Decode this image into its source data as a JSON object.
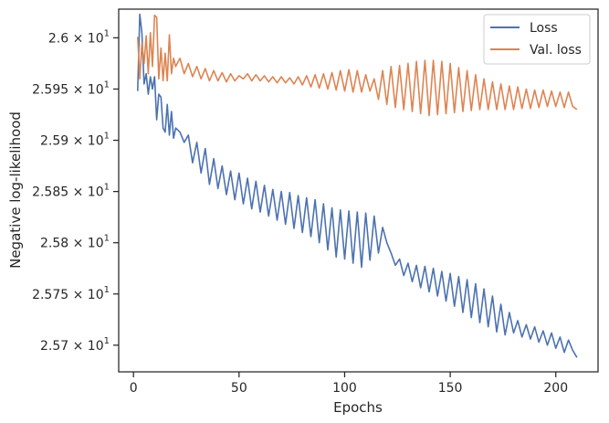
{
  "chart_data": {
    "type": "line",
    "title": "",
    "xlabel": "Epochs",
    "ylabel": "Negative log-likelihood",
    "xlim": [
      -7,
      220
    ],
    "ylim": [
      25.674,
      26.028
    ],
    "xticks": [
      0,
      50,
      100,
      150,
      200
    ],
    "xtick_labels": [
      "0",
      "50",
      "100",
      "150",
      "200"
    ],
    "yticks": [
      25.7,
      25.75,
      25.8,
      25.85,
      25.9,
      25.95,
      26.0
    ],
    "ytick_labels": [
      {
        "mantissa": "2.57",
        "base": "10",
        "exp": "1"
      },
      {
        "mantissa": "2.575",
        "base": "10",
        "exp": "1"
      },
      {
        "mantissa": "2.58",
        "base": "10",
        "exp": "1"
      },
      {
        "mantissa": "2.585",
        "base": "10",
        "exp": "1"
      },
      {
        "mantissa": "2.59",
        "base": "10",
        "exp": "1"
      },
      {
        "mantissa": "2.595",
        "base": "10",
        "exp": "1"
      },
      {
        "mantissa": "2.6",
        "base": "10",
        "exp": "1"
      }
    ],
    "grid": false,
    "legend_position": "top-right",
    "series": [
      {
        "name": "Loss",
        "color": "#4c72b0",
        "x": [
          2,
          3,
          4,
          5,
          6,
          7,
          8,
          9,
          10,
          11,
          12,
          13,
          14,
          15,
          16,
          17,
          18,
          19,
          20,
          22,
          24,
          26,
          28,
          30,
          32,
          34,
          36,
          38,
          40,
          42,
          44,
          46,
          48,
          50,
          52,
          54,
          56,
          58,
          60,
          62,
          64,
          66,
          68,
          70,
          72,
          74,
          76,
          78,
          80,
          82,
          84,
          86,
          88,
          90,
          92,
          94,
          96,
          98,
          100,
          102,
          104,
          106,
          108,
          110,
          112,
          114,
          116,
          118,
          120,
          122,
          124,
          126,
          128,
          130,
          132,
          134,
          136,
          138,
          140,
          142,
          144,
          146,
          148,
          150,
          152,
          154,
          156,
          158,
          160,
          162,
          164,
          166,
          168,
          170,
          172,
          174,
          176,
          178,
          180,
          182,
          184,
          186,
          188,
          190,
          192,
          194,
          196,
          198,
          200,
          202,
          204,
          206,
          208,
          210
        ],
        "values": [
          25.948,
          26.023,
          26.005,
          25.955,
          25.965,
          25.945,
          25.962,
          25.95,
          25.962,
          25.92,
          25.945,
          25.942,
          25.912,
          25.908,
          25.935,
          25.905,
          25.928,
          25.902,
          25.912,
          25.908,
          25.898,
          25.905,
          25.878,
          25.898,
          25.868,
          25.892,
          25.857,
          25.882,
          25.853,
          25.875,
          25.847,
          25.87,
          25.842,
          25.868,
          25.838,
          25.863,
          25.833,
          25.86,
          25.83,
          25.856,
          25.826,
          25.852,
          25.822,
          25.85,
          25.818,
          25.849,
          25.814,
          25.846,
          25.81,
          25.844,
          25.806,
          25.842,
          25.8,
          25.838,
          25.793,
          25.834,
          25.786,
          25.832,
          25.784,
          25.831,
          25.78,
          25.83,
          25.776,
          25.829,
          25.783,
          25.826,
          25.79,
          25.815,
          25.8,
          25.79,
          25.778,
          25.784,
          25.768,
          25.78,
          25.762,
          25.778,
          25.756,
          25.777,
          25.752,
          25.775,
          25.748,
          25.772,
          25.743,
          25.77,
          25.738,
          25.767,
          25.732,
          25.764,
          25.727,
          25.76,
          25.722,
          25.755,
          25.718,
          25.748,
          25.713,
          25.74,
          25.71,
          25.732,
          25.712,
          25.724,
          25.708,
          25.72,
          25.706,
          25.718,
          25.703,
          25.714,
          25.7,
          25.712,
          25.697,
          25.708,
          25.693,
          25.705,
          25.695,
          25.688
        ]
      },
      {
        "name": "Val. loss",
        "color": "#dd8452",
        "x": [
          2,
          3,
          4,
          5,
          6,
          7,
          8,
          9,
          10,
          11,
          12,
          13,
          14,
          15,
          16,
          17,
          18,
          19,
          20,
          22,
          24,
          26,
          28,
          30,
          32,
          34,
          36,
          38,
          40,
          42,
          44,
          46,
          48,
          50,
          52,
          54,
          56,
          58,
          60,
          62,
          64,
          66,
          68,
          70,
          72,
          74,
          76,
          78,
          80,
          82,
          84,
          86,
          88,
          90,
          92,
          94,
          96,
          98,
          100,
          102,
          104,
          106,
          108,
          110,
          112,
          114,
          116,
          118,
          120,
          122,
          124,
          126,
          128,
          130,
          132,
          134,
          136,
          138,
          140,
          142,
          144,
          146,
          148,
          150,
          152,
          154,
          156,
          158,
          160,
          162,
          164,
          166,
          168,
          170,
          172,
          174,
          176,
          178,
          180,
          182,
          184,
          186,
          188,
          190,
          192,
          194,
          196,
          198,
          200,
          202,
          204,
          206,
          208,
          210
        ],
        "values": [
          26.001,
          25.96,
          25.995,
          25.975,
          26.002,
          25.965,
          26.005,
          25.972,
          26.022,
          26.02,
          25.96,
          25.99,
          25.958,
          25.985,
          25.958,
          26.003,
          25.965,
          25.98,
          25.972,
          25.98,
          25.965,
          25.975,
          25.962,
          25.972,
          25.96,
          25.97,
          25.958,
          25.968,
          25.958,
          25.966,
          25.957,
          25.965,
          25.958,
          25.963,
          25.96,
          25.965,
          25.958,
          25.964,
          25.958,
          25.963,
          25.957,
          25.962,
          25.956,
          25.962,
          25.956,
          25.961,
          25.955,
          25.962,
          25.954,
          25.963,
          25.952,
          25.964,
          25.951,
          25.965,
          25.95,
          25.966,
          25.949,
          25.968,
          25.948,
          25.969,
          25.947,
          25.968,
          25.947,
          25.964,
          25.948,
          25.96,
          25.94,
          25.968,
          25.935,
          25.972,
          25.932,
          25.973,
          25.93,
          25.975,
          25.928,
          25.977,
          25.926,
          25.978,
          25.924,
          25.978,
          25.925,
          25.977,
          25.926,
          25.975,
          25.927,
          25.971,
          25.928,
          25.968,
          25.929,
          25.964,
          25.93,
          25.96,
          25.93,
          25.957,
          25.93,
          25.955,
          25.93,
          25.953,
          25.93,
          25.952,
          25.931,
          25.95,
          25.931,
          25.949,
          25.932,
          25.949,
          25.933,
          25.948,
          25.933,
          25.947,
          25.932,
          25.947,
          25.933,
          25.93
        ]
      }
    ]
  }
}
